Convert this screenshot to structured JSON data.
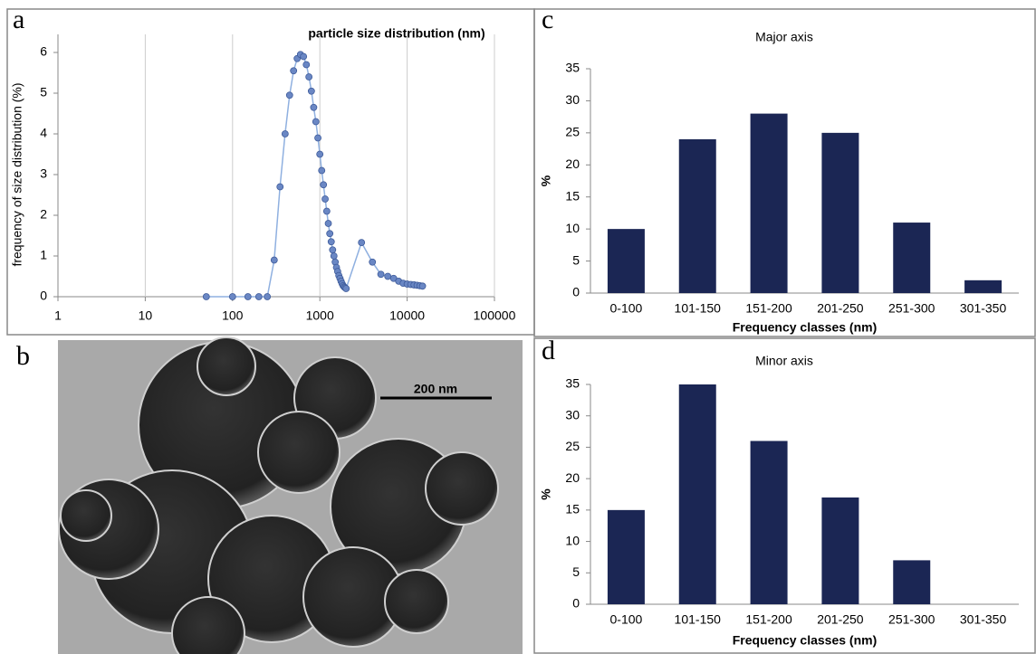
{
  "panels": [
    "a",
    "b",
    "c",
    "d"
  ],
  "image": {
    "scale_bar": "200 nm"
  },
  "chart_data": [
    {
      "type": "line",
      "title": "particle size distribution (nm)",
      "ylabel": "frequency of size distribution (%)",
      "x": [
        50,
        100,
        150,
        200,
        250,
        300,
        350,
        400,
        450,
        500,
        550,
        600,
        650,
        700,
        750,
        800,
        850,
        900,
        950,
        1000,
        1050,
        1100,
        1150,
        1200,
        1250,
        1300,
        1350,
        1400,
        1450,
        1500,
        1550,
        1600,
        1650,
        1700,
        1750,
        1800,
        1850,
        1900,
        1950,
        2000,
        3000,
        4000,
        5000,
        6000,
        7000,
        8000,
        9000,
        10000,
        11000,
        12000,
        13000,
        14000,
        15000
      ],
      "values": [
        0,
        0,
        0,
        0,
        0,
        0.9,
        2.7,
        4.0,
        4.95,
        5.55,
        5.85,
        5.95,
        5.9,
        5.7,
        5.4,
        5.05,
        4.65,
        4.3,
        3.9,
        3.5,
        3.1,
        2.75,
        2.4,
        2.1,
        1.8,
        1.55,
        1.35,
        1.15,
        1.0,
        0.85,
        0.72,
        0.62,
        0.52,
        0.45,
        0.38,
        0.32,
        0.27,
        0.24,
        0.22,
        0.2,
        1.33,
        0.85,
        0.55,
        0.5,
        0.45,
        0.38,
        0.33,
        0.31,
        0.3,
        0.29,
        0.28,
        0.27,
        0.26
      ],
      "xscale": "log",
      "xlim": [
        1,
        100000
      ],
      "xticks": [
        1,
        10,
        100,
        1000,
        10000,
        100000
      ],
      "ylim": [
        0,
        6
      ],
      "yticks": [
        0,
        1,
        2,
        3,
        4,
        5,
        6
      ],
      "grid": "x",
      "color": "#8fb0e0",
      "marker_color": "#6a87c4"
    },
    {
      "type": "bar",
      "title": "Major axis",
      "ylabel": "%",
      "xlabel": "Frequency classes (nm)",
      "categories": [
        "0-100",
        "101-150",
        "151-200",
        "201-250",
        "251-300",
        "301-350"
      ],
      "values": [
        10,
        24,
        28,
        25,
        11,
        2
      ],
      "ylim": [
        0,
        35
      ],
      "yticks": [
        0,
        5,
        10,
        15,
        20,
        25,
        30,
        35
      ],
      "color": "#1b2654"
    },
    {
      "type": "bar",
      "title": "Minor axis",
      "ylabel": "%",
      "xlabel": "Frequency classes (nm)",
      "categories": [
        "0-100",
        "101-150",
        "151-200",
        "201-250",
        "251-300",
        "301-350"
      ],
      "values": [
        15,
        35,
        26,
        17,
        7,
        0
      ],
      "ylim": [
        0,
        35
      ],
      "yticks": [
        0,
        5,
        10,
        15,
        20,
        25,
        30,
        35
      ],
      "color": "#1b2654"
    }
  ]
}
